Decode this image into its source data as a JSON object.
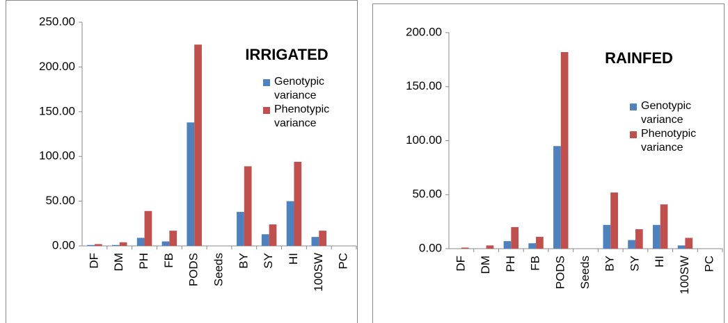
{
  "chart_data": [
    {
      "type": "bar",
      "title": "IRRIGATED",
      "categories": [
        "DF",
        "DM",
        "PH",
        "FB",
        "PODS",
        "Seeds",
        "BY",
        "SY",
        "HI",
        "100SW",
        "PC"
      ],
      "series": [
        {
          "name": "Genotypic variance",
          "color": "#4f81bd",
          "values": [
            1,
            1,
            9,
            5,
            138,
            0,
            38,
            13,
            50,
            10,
            0
          ]
        },
        {
          "name": "Phenotypic variance",
          "color": "#c0504d",
          "values": [
            2,
            4,
            39,
            17,
            225,
            0,
            89,
            24,
            94,
            17,
            0
          ]
        }
      ],
      "ylim": [
        0,
        250
      ],
      "yticks": [
        {
          "value": 0,
          "label": "0.00"
        },
        {
          "value": 50,
          "label": "50.00"
        },
        {
          "value": 100,
          "label": "100.00"
        },
        {
          "value": 150,
          "label": "150.00"
        },
        {
          "value": 200,
          "label": "200.00"
        },
        {
          "value": 250,
          "label": "250.00"
        }
      ],
      "legend": "upper right"
    },
    {
      "type": "bar",
      "title": "RAINFED",
      "categories": [
        "DF",
        "DM",
        "PH",
        "FB",
        "PODS",
        "Seeds",
        "BY",
        "SY",
        "HI",
        "100SW",
        "PC"
      ],
      "series": [
        {
          "name": "Genotypic variance",
          "color": "#4f81bd",
          "values": [
            0,
            0,
            7,
            5,
            95,
            0,
            22,
            8,
            22,
            3,
            0
          ]
        },
        {
          "name": "Phenotypic variance",
          "color": "#c0504d",
          "values": [
            1,
            3,
            20,
            11,
            182,
            0,
            52,
            18,
            41,
            10,
            0
          ]
        }
      ],
      "ylim": [
        0,
        200
      ],
      "yticks": [
        {
          "value": 0,
          "label": "0.00"
        },
        {
          "value": 50,
          "label": "50.00"
        },
        {
          "value": 100,
          "label": "100.00"
        },
        {
          "value": 150,
          "label": "150.00"
        },
        {
          "value": 200,
          "label": "200.00"
        }
      ],
      "legend": "upper right"
    }
  ]
}
